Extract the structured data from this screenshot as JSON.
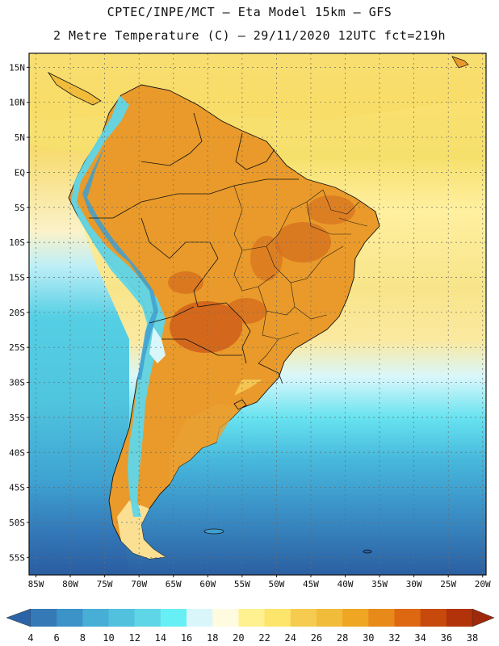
{
  "header": {
    "line1": "CPTEC/INPE/MCT –  Eta Model 15km – GFS",
    "line2": "2 Metre Temperature (C) – 29/11/2020 12UTC fct=219h"
  },
  "axes": {
    "lat_labels": [
      "15N",
      "10N",
      "5N",
      "EQ",
      "5S",
      "10S",
      "15S",
      "20S",
      "25S",
      "30S",
      "35S",
      "40S",
      "45S",
      "50S",
      "55S"
    ],
    "lat_values": [
      15,
      10,
      5,
      0,
      -5,
      -10,
      -15,
      -20,
      -25,
      -30,
      -35,
      -40,
      -45,
      -50,
      -55
    ],
    "lon_labels": [
      "85W",
      "80W",
      "75W",
      "70W",
      "65W",
      "60W",
      "55W",
      "50W",
      "45W",
      "40W",
      "35W",
      "30W",
      "25W",
      "20W"
    ],
    "lon_values": [
      -85,
      -80,
      -75,
      -70,
      -65,
      -60,
      -55,
      -50,
      -45,
      -40,
      -35,
      -30,
      -25,
      -20
    ],
    "lat_range": [
      -57.5,
      17
    ],
    "lon_range": [
      -86,
      -19.5
    ]
  },
  "legend": {
    "unit": "C",
    "labels": [
      "4",
      "6",
      "8",
      "10",
      "12",
      "14",
      "16",
      "18",
      "20",
      "22",
      "24",
      "26",
      "28",
      "30",
      "32",
      "34",
      "36",
      "38"
    ],
    "colors": [
      "#2b63a6",
      "#3579b7",
      "#3b93c8",
      "#47aed6",
      "#52c1de",
      "#5fd6e8",
      "#66f0f5",
      "#d9f7fb",
      "#fffbe0",
      "#fff18f",
      "#fde46b",
      "#f6cc50",
      "#f0bc3a",
      "#eea623",
      "#e88a1a",
      "#de6712",
      "#c74a0c",
      "#b2330a",
      "#a0280a"
    ]
  },
  "palette": {
    "ocean_cold": "#2b5fa2",
    "ocean_mid": "#3f9fd0",
    "ocean_cool": "#52c4de",
    "ocean_warm": "#f8e58a",
    "land_hot": "#e99626",
    "land_very_hot": "#d4701c",
    "andes": "#58d3e8"
  }
}
